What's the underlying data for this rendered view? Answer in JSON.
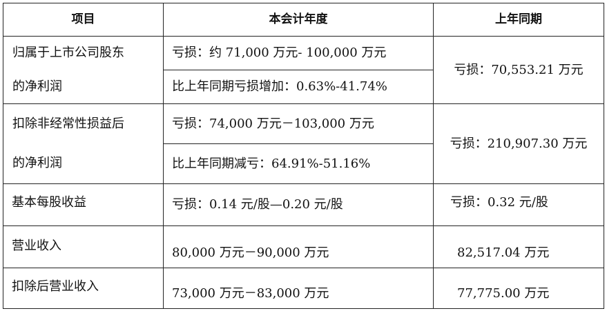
{
  "header": {
    "item": "项目",
    "current": "本会计年度",
    "previous": "上年同期"
  },
  "rows": [
    {
      "label_line1": "归属于上市公司股东",
      "label_line2": "的净利润",
      "current_line1": "亏损：约 71,000 万元- 100,000 万元",
      "current_line2": "比上年同期亏损增加：0.63%-41.74%",
      "previous": "亏损：70,553.21 万元"
    },
    {
      "label_line1": "扣除非经常性损益后",
      "label_line2": "的净利润",
      "current_line1": "亏损：74,000 万元－103,000 万元",
      "current_line2": "比上年同期减亏：64.91%-51.16%",
      "previous": "亏损：210,907.30 万元"
    },
    {
      "label": "基本每股收益",
      "current": "亏损：0.14 元/股—0.20 元/股",
      "previous": "亏损：0.32 元/股"
    },
    {
      "label": "营业收入",
      "current": "80,000 万元－90,000 万元",
      "previous": "82,517.04 万元"
    },
    {
      "label": "扣除后营业收入",
      "current": "73,000 万元－83,000 万元",
      "previous": "77,775.00 万元"
    }
  ]
}
